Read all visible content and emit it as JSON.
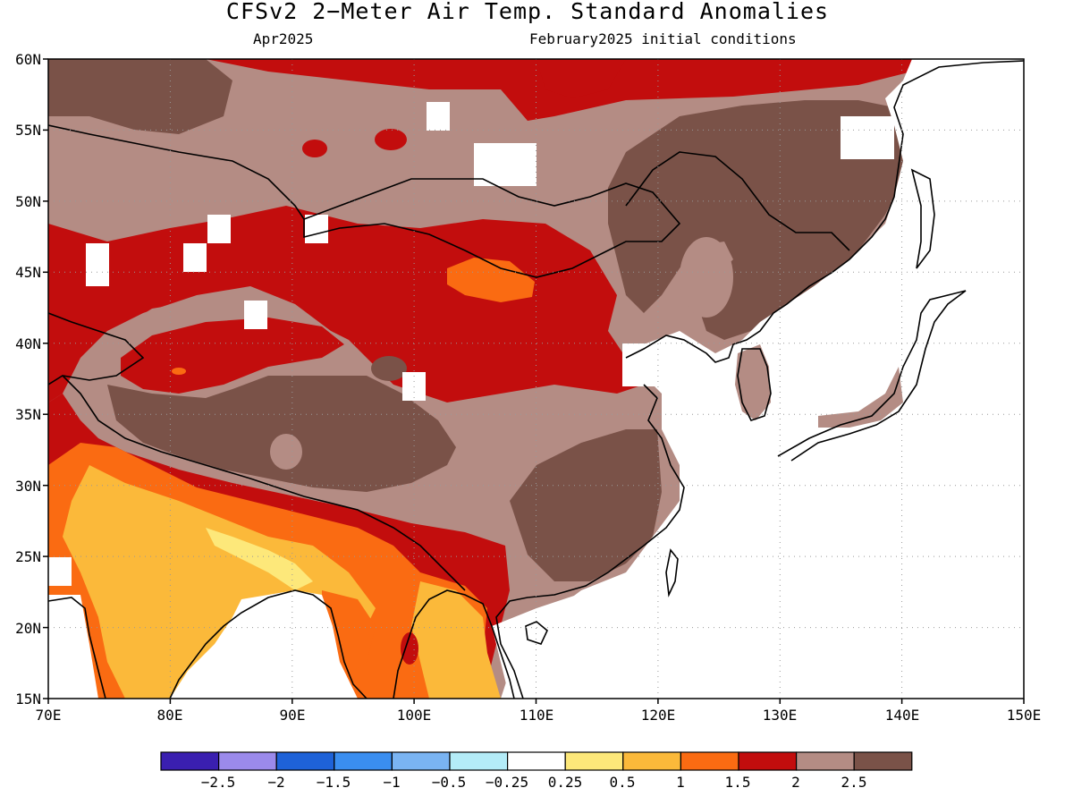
{
  "title": "CFSv2 2−Meter Air Temp. Standard Anomalies",
  "subtitle_left": "Apr2025",
  "subtitle_right": "February2025 initial conditions",
  "map": {
    "lon_range": [
      70,
      150
    ],
    "lat_range": [
      15,
      60
    ],
    "lat_ticks": [
      "60N",
      "55N",
      "50N",
      "45N",
      "40N",
      "35N",
      "30N",
      "25N",
      "20N",
      "15N"
    ],
    "lon_ticks": [
      "70E",
      "80E",
      "90E",
      "100E",
      "110E",
      "120E",
      "130E",
      "140E",
      "150E"
    ]
  },
  "colorbar": {
    "colors": [
      "#3a1fb0",
      "#9b8aeb",
      "#1e62d8",
      "#3a8ef0",
      "#7ab4f2",
      "#b4ecf8",
      "#ffffff",
      "#fde87a",
      "#fbb93a",
      "#fa6b12",
      "#c20d0d",
      "#b48c84",
      "#7a5248"
    ],
    "labels": [
      "−2.5",
      "−2",
      "−1.5",
      "−1",
      "−0.5",
      "−0.25",
      "0.25",
      "0.5",
      "1",
      "1.5",
      "2",
      "2.5"
    ]
  },
  "field_colors": {
    "brown_light": "#b48c84",
    "brown_dark": "#7a5248",
    "red": "#c20d0d",
    "orange": "#fa6b12",
    "amber": "#fbb93a",
    "yellow": "#fde87a"
  }
}
